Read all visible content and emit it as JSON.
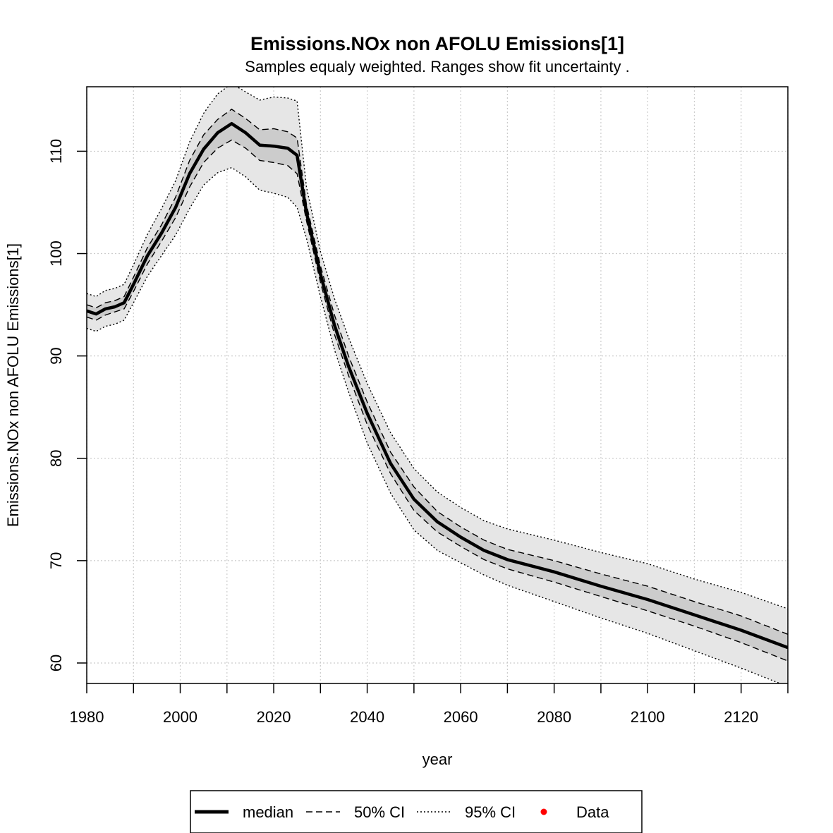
{
  "chart_data": {
    "type": "line",
    "title": "Emissions.NOx non AFOLU Emissions[1]",
    "subtitle": "Samples equaly weighted. Ranges show  fit uncertainty .",
    "xlabel": "year",
    "ylabel": "Emissions.NOx non AFOLU Emissions[1]",
    "xlim": [
      1980,
      2130
    ],
    "ylim": [
      58,
      116.3
    ],
    "x_ticks": [
      1980,
      2000,
      2020,
      2040,
      2060,
      2080,
      2100,
      2120
    ],
    "y_ticks": [
      60,
      70,
      80,
      90,
      100,
      110
    ],
    "grid": true,
    "legend_position": "bottom",
    "legend": [
      {
        "label": "median",
        "style": "solid"
      },
      {
        "label": "50% CI",
        "style": "dashed"
      },
      {
        "label": "95% CI",
        "style": "dotted"
      },
      {
        "label": "Data",
        "style": "point"
      }
    ],
    "colors": {
      "median": "#000000",
      "ci50_fill": "#cccccc",
      "ci95_fill": "#e6e6e6",
      "data": "#ff0000",
      "grid": "#cccccc"
    },
    "x": [
      1980,
      1982,
      1984,
      1986,
      1988,
      1990,
      1993,
      1996,
      1999,
      2002,
      2005,
      2008,
      2011,
      2014,
      2017,
      2020,
      2023,
      2025,
      2027,
      2030,
      2033,
      2036,
      2040,
      2045,
      2050,
      2055,
      2060,
      2065,
      2070,
      2080,
      2090,
      2100,
      2110,
      2120,
      2130
    ],
    "series": [
      {
        "name": "median",
        "values": [
          94.4,
          94.1,
          94.6,
          94.8,
          95.2,
          97.0,
          99.8,
          102.0,
          104.5,
          107.8,
          110.2,
          111.8,
          112.7,
          111.8,
          110.6,
          110.5,
          110.3,
          109.6,
          104.0,
          98.0,
          93.0,
          89.0,
          84.4,
          79.5,
          76.0,
          73.8,
          72.3,
          71.0,
          70.1,
          68.9,
          67.5,
          66.2,
          64.7,
          63.2,
          61.5
        ]
      },
      {
        "name": "50% CI lower",
        "values": [
          93.8,
          93.5,
          94.0,
          94.3,
          94.6,
          96.3,
          99.0,
          101.2,
          103.5,
          106.5,
          108.9,
          110.3,
          111.1,
          110.3,
          109.1,
          108.9,
          108.6,
          107.8,
          103.2,
          97.2,
          92.1,
          88.1,
          83.3,
          78.5,
          74.9,
          72.8,
          71.4,
          70.1,
          69.2,
          67.9,
          66.5,
          65.1,
          63.6,
          62.0,
          60.2
        ]
      },
      {
        "name": "50% CI upper",
        "values": [
          95.0,
          94.7,
          95.2,
          95.4,
          95.8,
          97.7,
          100.6,
          102.8,
          105.5,
          109.1,
          111.6,
          113.1,
          114.1,
          113.2,
          112.1,
          112.2,
          111.9,
          111.3,
          104.8,
          98.8,
          94.0,
          90.0,
          85.5,
          80.6,
          77.2,
          74.8,
          73.3,
          72.0,
          71.1,
          70.0,
          68.7,
          67.5,
          66.0,
          64.6,
          62.8
        ]
      },
      {
        "name": "95% CI lower",
        "values": [
          92.7,
          92.4,
          92.9,
          93.1,
          93.5,
          95.2,
          97.8,
          99.8,
          101.8,
          104.4,
          106.7,
          107.9,
          108.4,
          107.5,
          106.2,
          105.9,
          105.5,
          104.5,
          101.5,
          95.8,
          90.6,
          86.5,
          81.5,
          76.6,
          73.0,
          71.0,
          69.8,
          68.6,
          67.6,
          66.0,
          64.4,
          62.9,
          61.2,
          59.5,
          57.7
        ]
      },
      {
        "name": "95% CI upper",
        "values": [
          96.1,
          95.8,
          96.4,
          96.6,
          97.0,
          98.9,
          101.9,
          104.4,
          107.1,
          110.9,
          113.7,
          115.6,
          116.6,
          115.8,
          115.0,
          115.3,
          115.2,
          114.9,
          106.5,
          100.2,
          95.6,
          91.8,
          87.3,
          82.5,
          79.0,
          76.7,
          75.2,
          73.9,
          73.1,
          72.0,
          70.8,
          69.7,
          68.2,
          66.9,
          65.3
        ]
      }
    ]
  }
}
